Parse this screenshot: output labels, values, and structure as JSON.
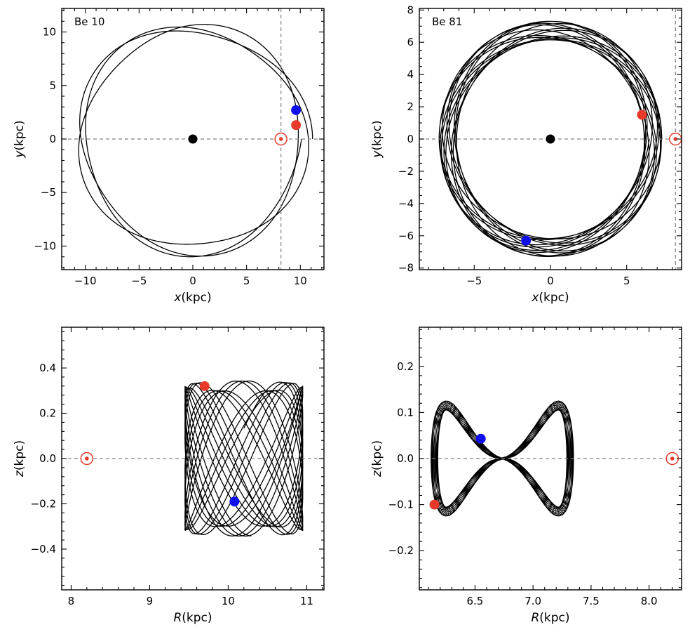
{
  "colors": {
    "red": "#e8392b",
    "blue": "#1010ee",
    "black": "#000000",
    "guide": "#808080"
  },
  "chart_data": [
    {
      "type": "line",
      "panel": "top-left",
      "label": "Be 10",
      "xlabel_var": "x",
      "xlabel_unit": "(kpc)",
      "ylabel_var": "y",
      "ylabel_unit": "(kpc)",
      "xlim": [
        -12.2,
        12.2
      ],
      "ylim": [
        -12.2,
        12.2
      ],
      "xticks": [
        -10,
        -5,
        0,
        5,
        10
      ],
      "yticks": [
        -10,
        -5,
        0,
        5,
        10
      ],
      "grid": false,
      "orbit": {
        "kind": "rosette",
        "r_min": 9.8,
        "r_max": 11.0,
        "n_loops": 3,
        "x_center": 0.55
      },
      "sun": {
        "x": 8.2,
        "y": 0
      },
      "galactic_center": {
        "x": 0,
        "y": 0
      },
      "start_point": {
        "x": 9.6,
        "y": 1.3,
        "color": "red"
      },
      "end_point": {
        "x": 9.6,
        "y": 2.7,
        "color": "blue"
      }
    },
    {
      "type": "line",
      "panel": "top-right",
      "label": "Be 81",
      "xlabel_var": "x",
      "xlabel_unit": "(kpc)",
      "ylabel_var": "y",
      "ylabel_unit": "(kpc)",
      "xlim": [
        -8.6,
        8.6
      ],
      "ylim": [
        -8.1,
        8.1
      ],
      "xticks": [
        -5,
        0,
        5
      ],
      "yticks": [
        -8,
        -6,
        -4,
        -2,
        0,
        2,
        4,
        6,
        8
      ],
      "grid": false,
      "orbit": {
        "kind": "rosette",
        "r_min": 6.15,
        "r_max": 7.3,
        "n_loops": 14
      },
      "sun": {
        "x": 8.2,
        "y": 0
      },
      "galactic_center": {
        "x": 0,
        "y": 0
      },
      "start_point": {
        "x": 6.0,
        "y": 1.5,
        "color": "red"
      },
      "end_point": {
        "x": -1.6,
        "y": -6.3,
        "color": "blue"
      }
    },
    {
      "type": "line",
      "panel": "bottom-left",
      "xlabel_var": "R",
      "xlabel_unit": "(kpc)",
      "ylabel_var": "z",
      "ylabel_unit": "(kpc)",
      "xlim": [
        7.88,
        11.22
      ],
      "ylim": [
        -0.58,
        0.58
      ],
      "xticks": [
        8,
        9,
        10,
        11
      ],
      "yticks": [
        -0.4,
        -0.2,
        0.0,
        0.2,
        0.4
      ],
      "ytick_labels": [
        "−0.4",
        "−0.2",
        "0.0",
        "0.2",
        "0.4"
      ],
      "grid": false,
      "orbit": {
        "kind": "lissajous",
        "r_min": 9.45,
        "r_max": 10.95,
        "z_amp": 0.32,
        "n_cycles": 14
      },
      "sun": {
        "x": 8.2,
        "y": 0
      },
      "start_point": {
        "x": 9.7,
        "y": 0.32,
        "color": "red"
      },
      "end_point": {
        "x": 10.08,
        "y": -0.19,
        "color": "blue"
      }
    },
    {
      "type": "line",
      "panel": "bottom-right",
      "xlabel_var": "R",
      "xlabel_unit": "(kpc)",
      "ylabel_var": "z",
      "ylabel_unit": "(kpc)",
      "xlim": [
        6.02,
        8.28
      ],
      "ylim": [
        -0.285,
        0.285
      ],
      "xticks": [
        6.5,
        7.0,
        7.5,
        8.0
      ],
      "yticks": [
        -0.2,
        -0.1,
        0.0,
        0.1,
        0.2
      ],
      "ytick_labels": [
        "−0.2",
        "−0.1",
        "0.0",
        "0.1",
        "0.2"
      ],
      "grid": false,
      "orbit": {
        "kind": "figure-eight",
        "r_min": 6.15,
        "r_max": 7.32,
        "z_amp": 0.125,
        "n_strands": 16
      },
      "sun": {
        "x": 8.2,
        "y": 0
      },
      "start_point": {
        "x": 6.15,
        "y": -0.1,
        "color": "red"
      },
      "end_point": {
        "x": 6.55,
        "y": 0.043,
        "color": "blue"
      }
    }
  ]
}
